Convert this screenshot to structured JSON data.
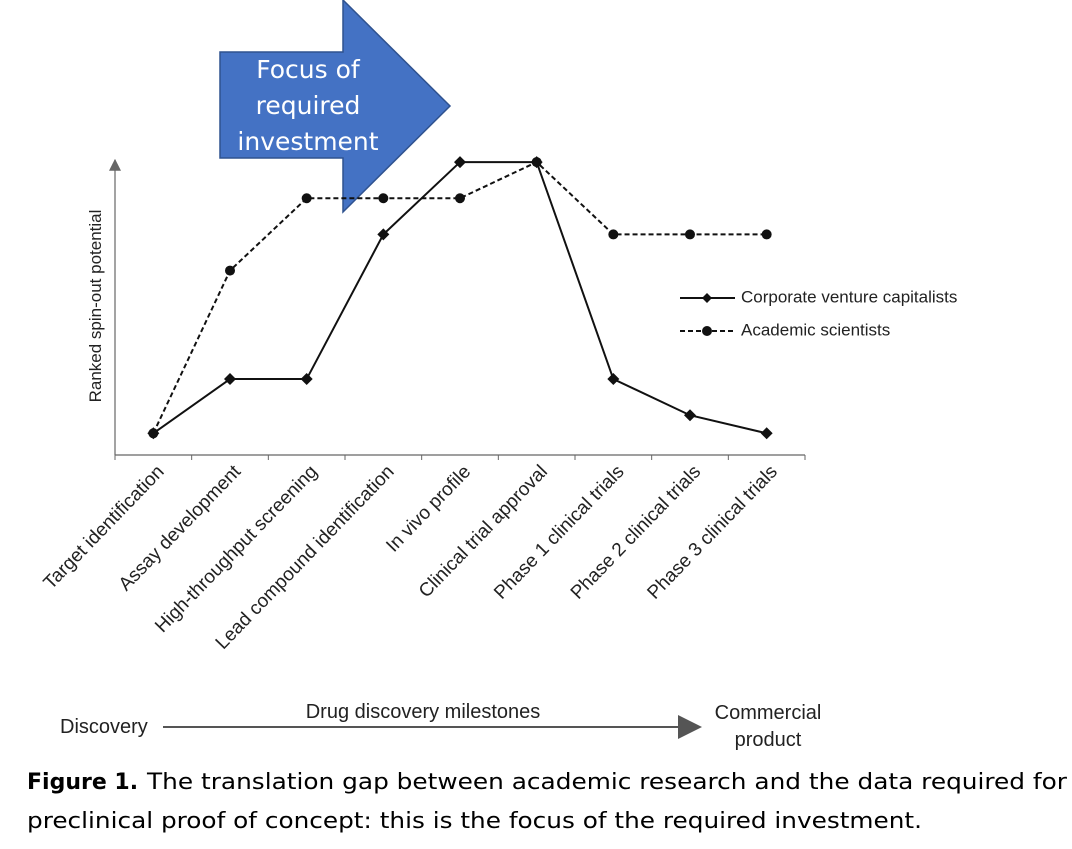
{
  "chart_data": {
    "type": "line",
    "annotation": [
      "Focus of",
      "required",
      "investment"
    ],
    "y_label": "Ranked spin-out potential",
    "categories": [
      "Target identification",
      "Assay development",
      "High-throughput screening",
      "Lead compound identification",
      "In vivo profile",
      "Clinical trial approval",
      "Phase 1 clinical trials",
      "Phase 2 clinical trials",
      "Phase 3 clinical trials"
    ],
    "series": [
      {
        "name": "Corporate venture capitalists",
        "color": "#111111",
        "line_style": "solid",
        "marker": "diamond",
        "values": [
          1,
          2.5,
          2.5,
          6.5,
          8.5,
          8.5,
          2.5,
          1.5,
          1
        ]
      },
      {
        "name": "Academic scientists",
        "color": "#111111",
        "line_style": "dashed",
        "marker": "circle",
        "values": [
          1,
          5.5,
          7.5,
          7.5,
          7.5,
          8.5,
          6.5,
          6.5,
          6.5
        ]
      }
    ],
    "ylim": [
      0.4,
      9
    ],
    "x_axis_start": "Discovery",
    "x_axis_label": "Drug discovery milestones",
    "x_axis_end": [
      "Commercial",
      "product"
    ],
    "caption": {
      "label": "Figure 1.",
      "lines": [
        "The translation gap between academic research and the data required for",
        "preclinical proof of concept: this is the focus of the required investment."
      ]
    }
  }
}
